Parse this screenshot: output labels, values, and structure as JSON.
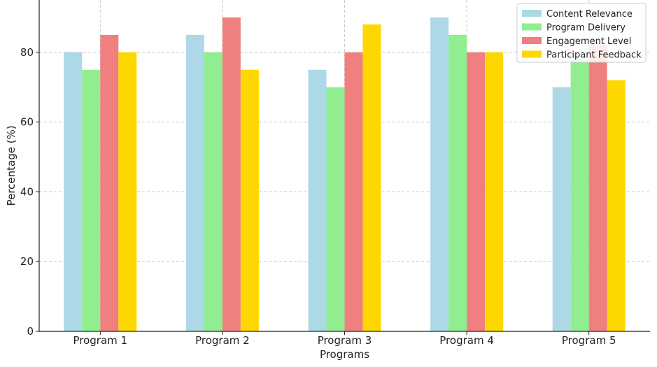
{
  "chart_data": {
    "type": "bar",
    "title": "",
    "xlabel": "Programs",
    "ylabel": "Percentage (%)",
    "categories": [
      "Program 1",
      "Program 2",
      "Program 3",
      "Program 4",
      "Program 5"
    ],
    "series": [
      {
        "name": "Content Relevance",
        "color": "#add8e6",
        "values": [
          80,
          85,
          75,
          90,
          70
        ]
      },
      {
        "name": "Program Delivery",
        "color": "#90ee90",
        "values": [
          75,
          80,
          70,
          85,
          78
        ]
      },
      {
        "name": "Engagement Level",
        "color": "#f08080",
        "values": [
          85,
          90,
          80,
          80,
          82
        ]
      },
      {
        "name": "Participant Feedback",
        "color": "#ffd700",
        "values": [
          80,
          75,
          88,
          80,
          72
        ]
      }
    ],
    "ylim": [
      0,
      95
    ],
    "yticks": [
      0,
      20,
      40,
      60,
      80
    ],
    "grid": true,
    "legend_position": "top-right"
  }
}
